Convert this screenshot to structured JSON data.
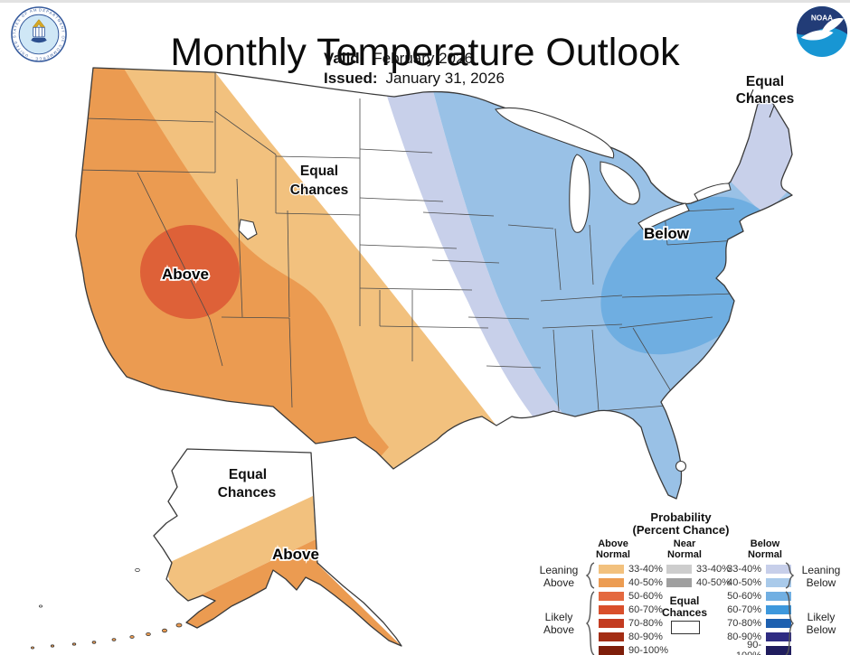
{
  "header": {
    "title": "Monthly Temperature Outlook",
    "valid_label": "Valid:",
    "valid_value": "February 2026",
    "issued_label": "Issued:",
    "issued_value": "January 31, 2026"
  },
  "logos": {
    "left_alt": "U.S. Department of Commerce seal",
    "left_ring_text": "DEPARTMENT OF COMMERCE · UNITED STATES OF AMERICA",
    "right_alt": "NOAA logo",
    "noaa_text": "NOAA"
  },
  "map": {
    "conus": {
      "equal_chances": {
        "line1": "Equal",
        "line2": "Chances"
      },
      "above_label": "Above",
      "below_label": "Below",
      "northeast_equal_chances": {
        "line1": "Equal",
        "line2": "Chances"
      }
    },
    "alaska": {
      "equal_chances": {
        "line1": "Equal",
        "line2": "Chances"
      },
      "above_label": "Above"
    }
  },
  "map_colors": {
    "above_33_40": "#F2C17E",
    "above_40_50": "#EB9B51",
    "above_50_60": "#DE6138",
    "below_33_40": "#C8D0EA",
    "below_40_50": "#99C1E6",
    "below_50_60": "#6FAEE1",
    "equal_chances": "#FFFFFF"
  },
  "legend": {
    "title_line1": "Probability",
    "title_line2": "(Percent Chance)",
    "above_header": {
      "line1": "Above",
      "line2": "Normal"
    },
    "near_header": {
      "line1": "Near",
      "line2": "Normal"
    },
    "below_header": {
      "line1": "Below",
      "line2": "Normal"
    },
    "ranges_full": [
      "33-40%",
      "40-50%",
      "50-60%",
      "60-70%",
      "70-80%",
      "80-90%",
      "90-100%"
    ],
    "ranges_near": [
      "33-40%",
      "40-50%"
    ],
    "above_colors": [
      "#F2C17E",
      "#EC9C52",
      "#E4693F",
      "#D94F2B",
      "#C33B20",
      "#A32D14",
      "#7E1E0A"
    ],
    "near_colors": [
      "#CDCDCD",
      "#9F9F9F"
    ],
    "below_colors": [
      "#C7CFEA",
      "#A9CAEA",
      "#71AFE2",
      "#3E98DC",
      "#1D60B0",
      "#2F2C82",
      "#201D5E"
    ],
    "equal_chances": {
      "line1": "Equal",
      "line2": "Chances"
    },
    "leaning_above": "Leaning Above",
    "likely_above": "Likely Above",
    "leaning_below": "Leaning Below",
    "likely_below": "Likely Below"
  }
}
